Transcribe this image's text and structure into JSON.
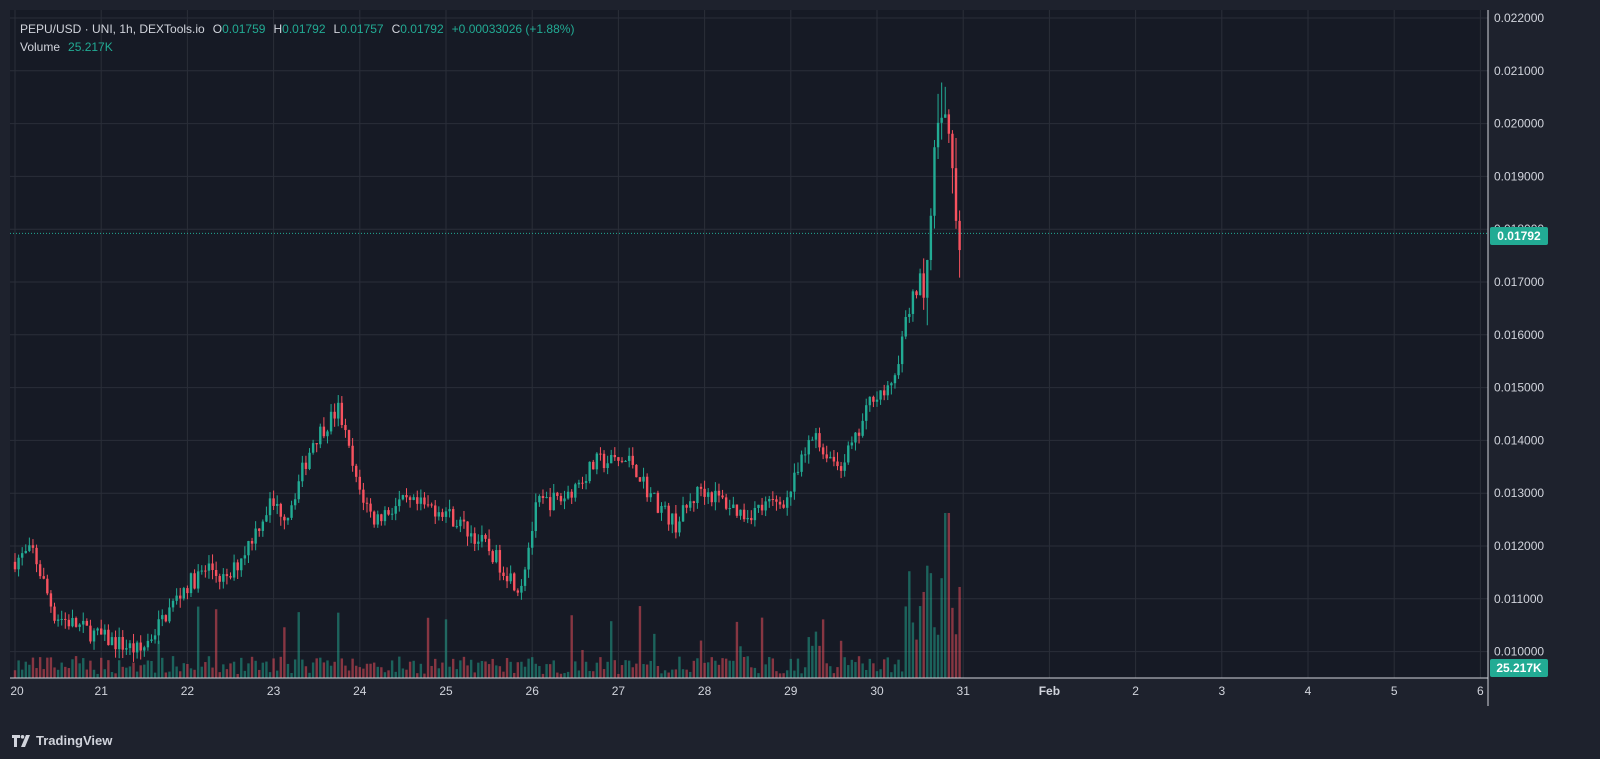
{
  "legend": {
    "symbol": "PEPU/USD · UNI, 1h, DEXTools.io",
    "open_key": "O",
    "open": "0.01759",
    "high_key": "H",
    "high": "0.01792",
    "low_key": "L",
    "low": "0.01757",
    "close_key": "C",
    "close": "0.01792",
    "change": "+0.00033026 (+1.88%)",
    "volume_label": "Volume",
    "volume": "25.217K"
  },
  "badges": {
    "last_price": "0.01792",
    "last_volume": "25.217K"
  },
  "branding": {
    "name": "TradingView",
    "icon": "tradingview-logo-icon"
  },
  "colors": {
    "background": "#1e222d",
    "pane": "#161a25",
    "grid": "#2a2e39",
    "up": "#22ab94",
    "down": "#f7525f",
    "text": "#d1d4dc"
  },
  "chart_data": {
    "type": "candlestick",
    "interval": "1h",
    "x_ticks": [
      "20",
      "21",
      "22",
      "23",
      "24",
      "25",
      "26",
      "27",
      "28",
      "29",
      "30",
      "31",
      "Feb",
      "2",
      "3",
      "4",
      "5",
      "6"
    ],
    "y_ticks": [
      "0.022000",
      "0.021000",
      "0.020000",
      "0.019000",
      "0.018000",
      "0.017000",
      "0.016000",
      "0.015000",
      "0.014000",
      "0.013000",
      "0.012000",
      "0.011000",
      "0.010000"
    ],
    "ylim": [
      0.00975,
      0.02225
    ],
    "last_price": 0.01792,
    "day_anchors": [
      {
        "day": "20",
        "price": 0.0117
      },
      {
        "day": "20.25",
        "price": 0.0119
      },
      {
        "day": "20.5",
        "price": 0.0107
      },
      {
        "day": "21",
        "price": 0.0103
      },
      {
        "day": "21.5",
        "price": 0.01
      },
      {
        "day": "22",
        "price": 0.0112
      },
      {
        "day": "22.3",
        "price": 0.0116
      },
      {
        "day": "22.5",
        "price": 0.0113
      },
      {
        "day": "23",
        "price": 0.0128
      },
      {
        "day": "23.2",
        "price": 0.0126
      },
      {
        "day": "23.5",
        "price": 0.014
      },
      {
        "day": "23.8",
        "price": 0.0146
      },
      {
        "day": "24",
        "price": 0.0132
      },
      {
        "day": "24.2",
        "price": 0.0125
      },
      {
        "day": "24.5",
        "price": 0.0128
      },
      {
        "day": "25",
        "price": 0.0127
      },
      {
        "day": "25.5",
        "price": 0.012
      },
      {
        "day": "25.9",
        "price": 0.0112
      },
      {
        "day": "26.1",
        "price": 0.0128
      },
      {
        "day": "26.4",
        "price": 0.0129
      },
      {
        "day": "26.8",
        "price": 0.0136
      },
      {
        "day": "27.2",
        "price": 0.0136
      },
      {
        "day": "27.4",
        "price": 0.013
      },
      {
        "day": "27.7",
        "price": 0.0124
      },
      {
        "day": "28",
        "price": 0.0131
      },
      {
        "day": "28.5",
        "price": 0.0126
      },
      {
        "day": "29",
        "price": 0.0129
      },
      {
        "day": "29.3",
        "price": 0.0141
      },
      {
        "day": "29.6",
        "price": 0.0135
      },
      {
        "day": "29.8",
        "price": 0.014
      },
      {
        "day": "30",
        "price": 0.0149
      },
      {
        "day": "30.2",
        "price": 0.0149
      },
      {
        "day": "30.4",
        "price": 0.0164
      },
      {
        "day": "30.6",
        "price": 0.0173
      },
      {
        "day": "30.8",
        "price": 0.0205
      },
      {
        "day": "30.9",
        "price": 0.019
      },
      {
        "day": "31",
        "price": 0.01792
      }
    ]
  }
}
